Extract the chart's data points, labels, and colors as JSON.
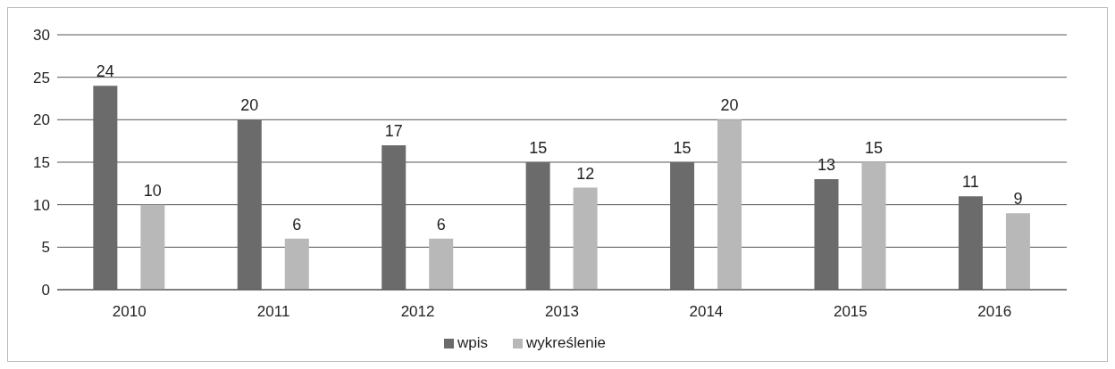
{
  "chart_data": {
    "type": "bar",
    "categories": [
      "2010",
      "2011",
      "2012",
      "2013",
      "2014",
      "2015",
      "2016"
    ],
    "series": [
      {
        "name": "wpis",
        "color": "#6b6b6b",
        "values": [
          24,
          20,
          17,
          15,
          15,
          13,
          11
        ]
      },
      {
        "name": "wykreślenie",
        "color": "#b8b8b8",
        "values": [
          10,
          6,
          6,
          12,
          20,
          15,
          9
        ]
      }
    ],
    "ylim": [
      0,
      30
    ],
    "yticks": [
      0,
      5,
      10,
      15,
      20,
      25,
      30
    ],
    "grid": "y",
    "legend": "bottom",
    "data_labels": true
  }
}
